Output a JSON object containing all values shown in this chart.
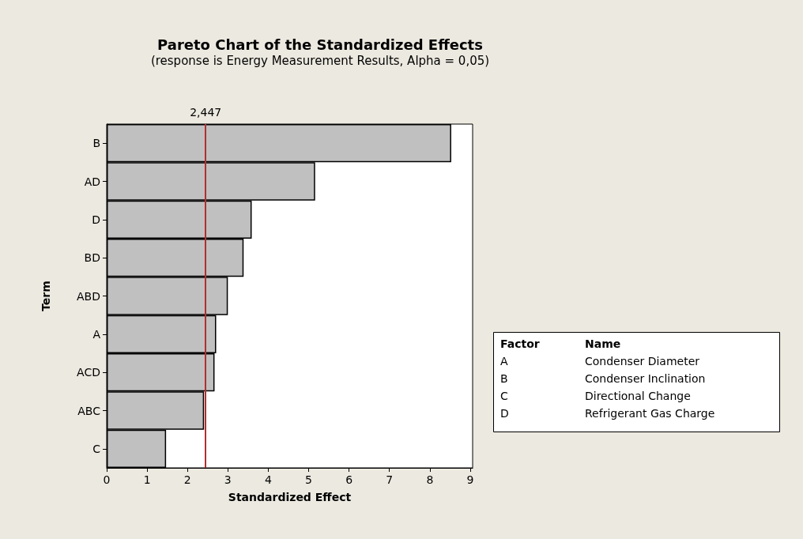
{
  "chart_data": {
    "type": "bar",
    "orientation": "horizontal",
    "title": "Pareto Chart of the Standardized Effects",
    "subtitle": "(response is Energy Measurement Results, Alpha = 0,05)",
    "xlabel": "Standardized Effect",
    "ylabel": "Term",
    "categories": [
      "B",
      "AD",
      "D",
      "BD",
      "ABD",
      "A",
      "ACD",
      "ABC",
      "C"
    ],
    "values": [
      8.53,
      5.16,
      3.59,
      3.39,
      3.0,
      2.71,
      2.67,
      2.41,
      1.47
    ],
    "color": "#c0c0c0",
    "xlim": [
      0,
      9.06
    ],
    "xticks": [
      0,
      1,
      2,
      3,
      4,
      5,
      6,
      7,
      8,
      9
    ],
    "grid": false,
    "ref_lines": [
      {
        "axis": "x",
        "value": 2.447,
        "label": "2,447",
        "color": "#b03030"
      }
    ],
    "annotations": [
      "Factor",
      "Name",
      "A",
      "Condenser Diameter",
      "B",
      "Condenser Inclination",
      "C",
      "Directional Change",
      "D",
      "Refrigerant Gas Charge"
    ]
  }
}
